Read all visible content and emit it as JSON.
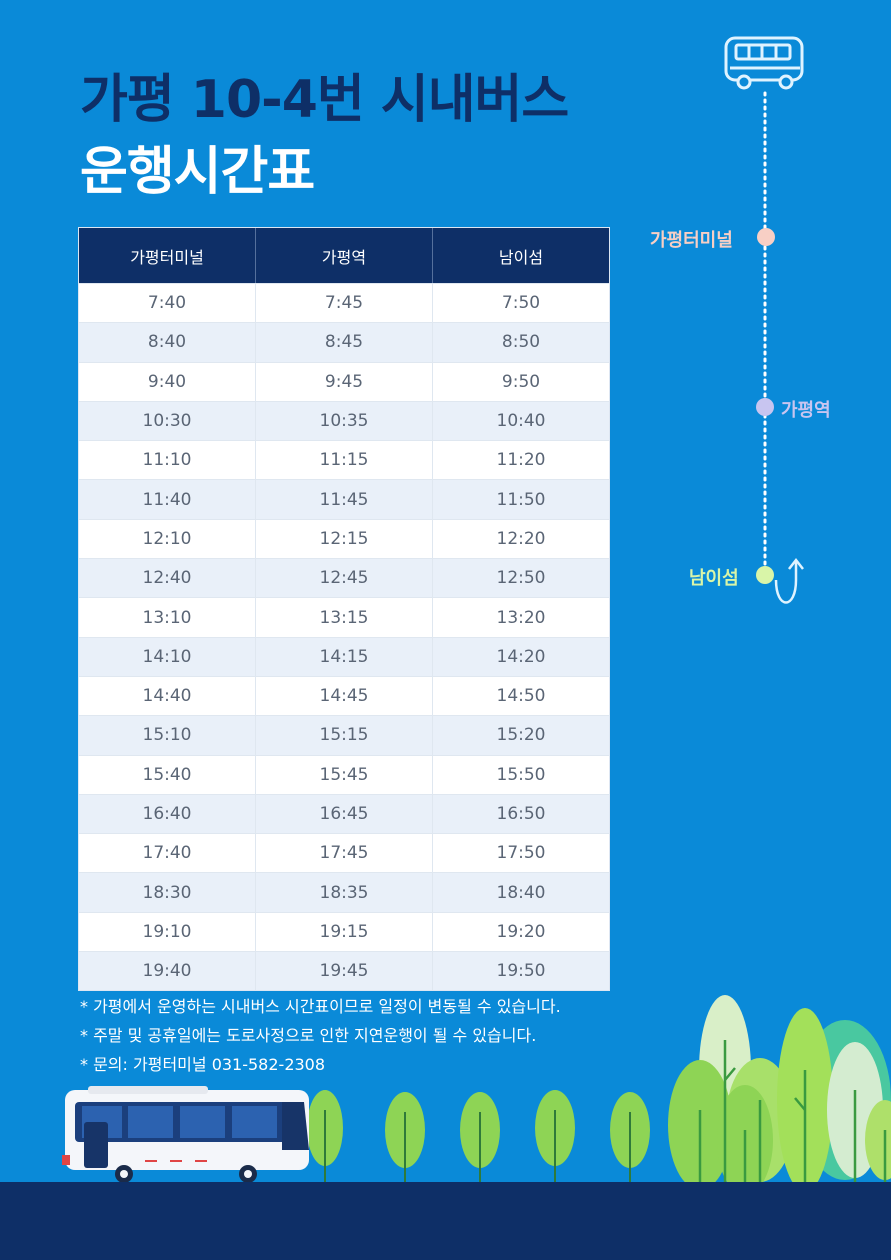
{
  "title": {
    "line1": "가평 10-4번 시내버스",
    "line2": "운행시간표"
  },
  "route": {
    "stops": [
      {
        "name": "가평터미널",
        "color": "#f8cfc5"
      },
      {
        "name": "가평역",
        "color": "#c8c5f0"
      },
      {
        "name": "남이섬",
        "color": "#d9f5a8"
      }
    ]
  },
  "table": {
    "headers": [
      "가평터미널",
      "가평역",
      "남이섬"
    ],
    "rows": [
      [
        "7:40",
        "7:45",
        "7:50"
      ],
      [
        "8:40",
        "8:45",
        "8:50"
      ],
      [
        "9:40",
        "9:45",
        "9:50"
      ],
      [
        "10:30",
        "10:35",
        "10:40"
      ],
      [
        "11:10",
        "11:15",
        "11:20"
      ],
      [
        "11:40",
        "11:45",
        "11:50"
      ],
      [
        "12:10",
        "12:15",
        "12:20"
      ],
      [
        "12:40",
        "12:45",
        "12:50"
      ],
      [
        "13:10",
        "13:15",
        "13:20"
      ],
      [
        "14:10",
        "14:15",
        "14:20"
      ],
      [
        "14:40",
        "14:45",
        "14:50"
      ],
      [
        "15:10",
        "15:15",
        "15:20"
      ],
      [
        "15:40",
        "15:45",
        "15:50"
      ],
      [
        "16:40",
        "16:45",
        "16:50"
      ],
      [
        "17:40",
        "17:45",
        "17:50"
      ],
      [
        "18:30",
        "18:35",
        "18:40"
      ],
      [
        "19:10",
        "19:15",
        "19:20"
      ],
      [
        "19:40",
        "19:45",
        "19:50"
      ]
    ]
  },
  "notes": [
    "* 가평에서 운영하는 시내버스 시간표이므로 일정이 변동될 수 있습니다.",
    "* 주말 및 공휴일에는 도로사정으로 인한 지연운행이 될 수 있습니다.",
    "* 문의: 가평터미널 031-582-2308"
  ],
  "colors": {
    "background": "#0a8ad8",
    "navy": "#0e2f67",
    "row_alt": "#e9f0f9"
  },
  "icons": [
    "bus-icon",
    "u-turn-arrow-icon",
    "bus-illustration",
    "tree-illustration"
  ]
}
